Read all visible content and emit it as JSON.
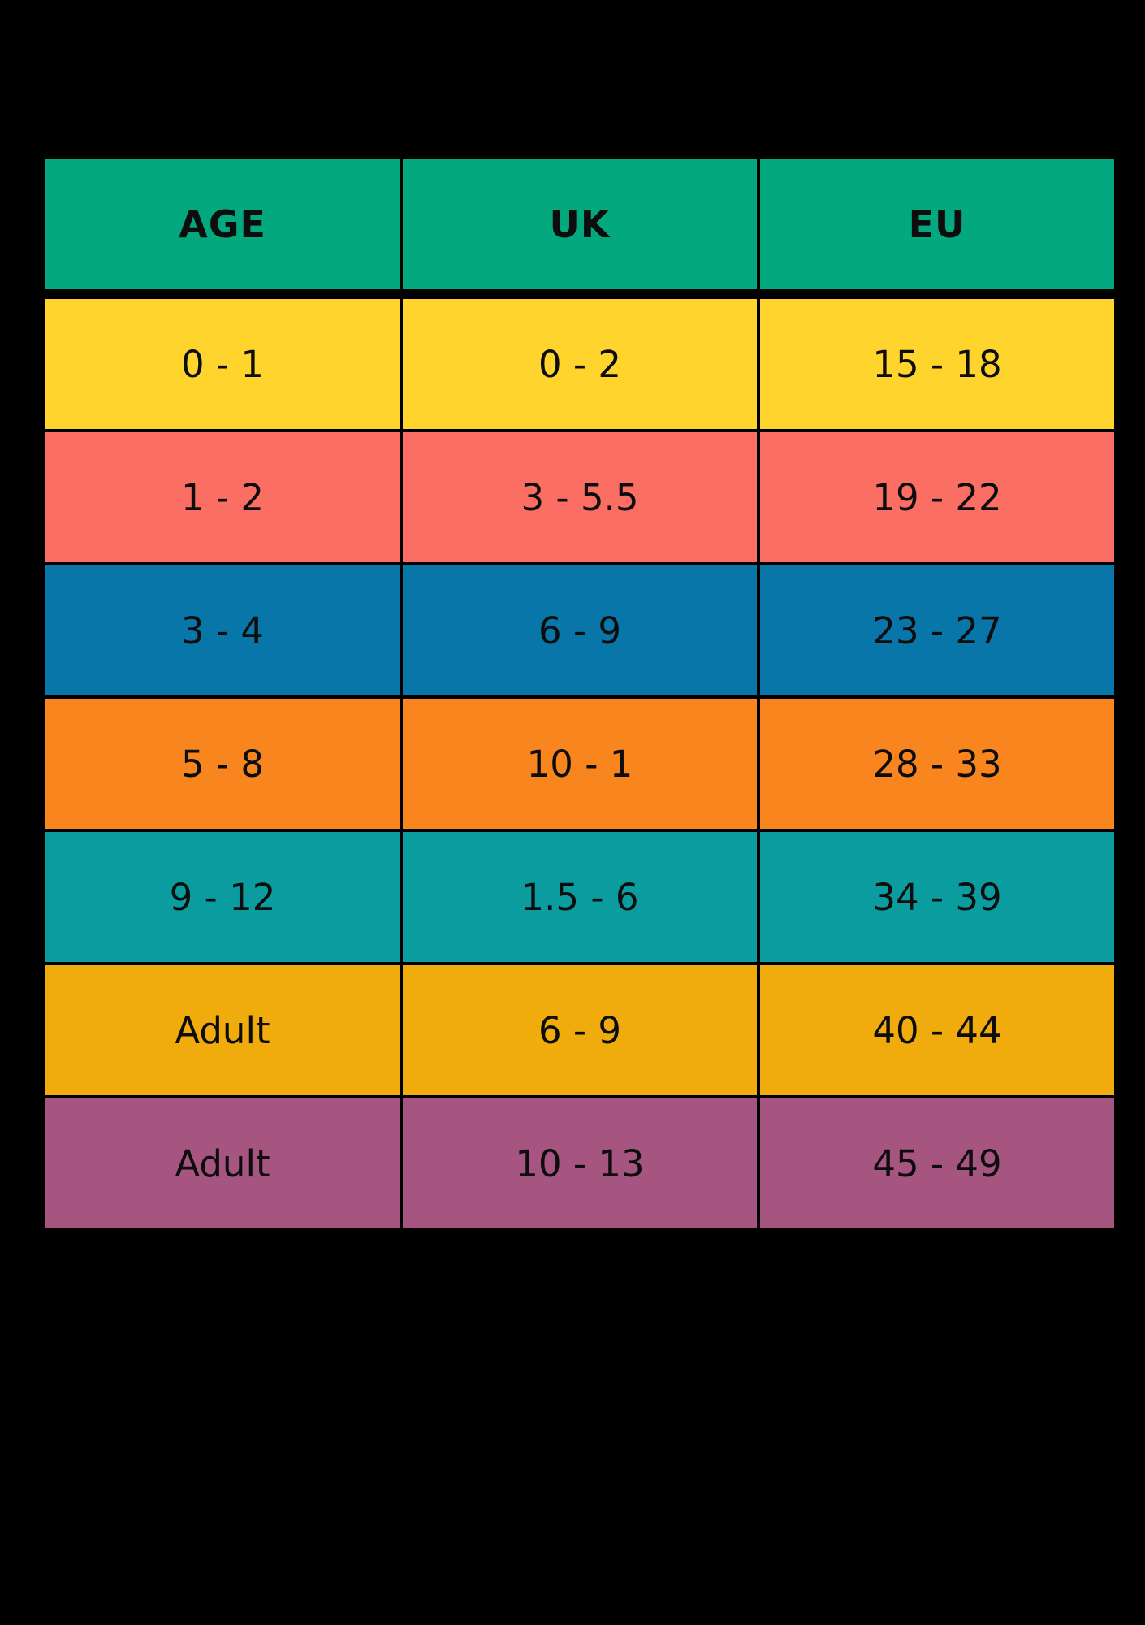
{
  "page": {
    "background": "#000000",
    "text_color": "#0d0d0d"
  },
  "chart_data": {
    "type": "table",
    "title": "",
    "columns": [
      "AGE",
      "UK",
      "EU"
    ],
    "rows": [
      [
        "0 - 1",
        "0 - 2",
        "15 - 18"
      ],
      [
        "1 - 2",
        "3 - 5.5",
        "19 - 22"
      ],
      [
        "3 - 4",
        "6 - 9",
        "23 - 27"
      ],
      [
        "5 - 8",
        "10 - 1",
        "28 - 33"
      ],
      [
        "9 - 12",
        "1.5 - 6",
        "34 - 39"
      ],
      [
        "Adult",
        "6 - 9",
        "40 - 44"
      ],
      [
        "Adult",
        "10 - 13",
        "45 - 49"
      ]
    ],
    "header_color": "#03a87e",
    "row_colors": [
      "#ffd42d",
      "#fa6e63",
      "#0876a8",
      "#f9851e",
      "#0a9c9e",
      "#f0ac0d",
      "#a65480"
    ],
    "grid_color": "#000000",
    "layout": "header row + 7 colored data rows, 3 equal columns, black grid lines"
  }
}
